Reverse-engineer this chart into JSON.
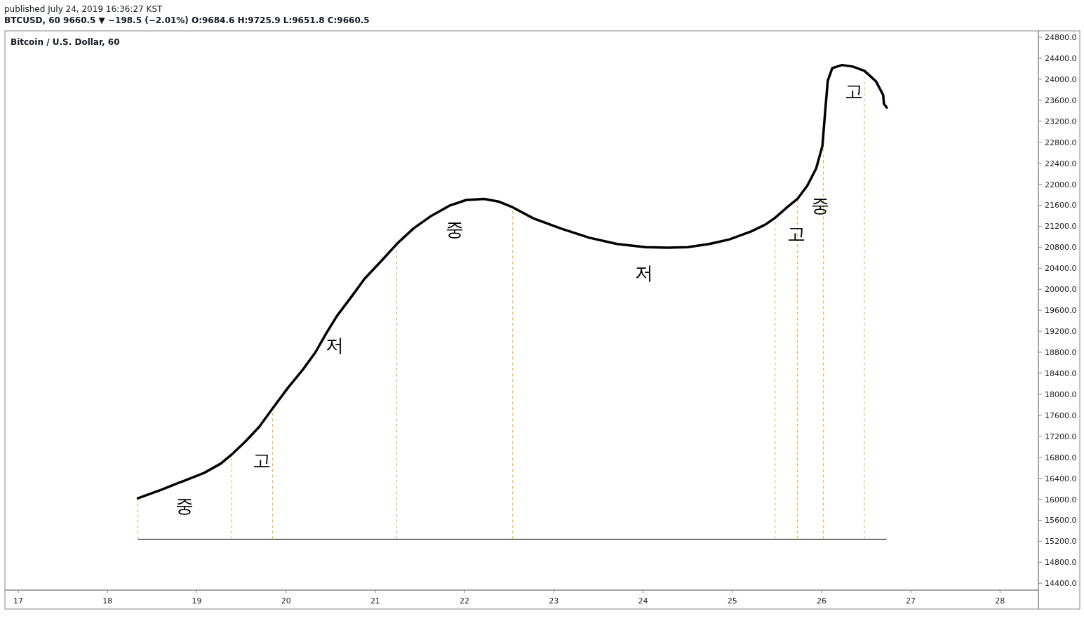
{
  "chart_data": {
    "type": "line",
    "title": "Bitcoin / U.S. Dollar, 60",
    "annotations": [
      "published July 24, 2019 16:36:27 KST",
      "BTCUSD, 60 9660.5 ▼ −198.5 (−2.01%) O:9684.6 H:9725.9 L:9651.8 C:9660.5",
      "중",
      "고",
      "저",
      "중",
      "저",
      "고",
      "중",
      "고"
    ],
    "x": [
      18.34,
      18.6,
      18.84,
      19.08,
      19.27,
      19.39,
      19.55,
      19.7,
      19.85,
      20.02,
      20.18,
      20.33,
      20.45,
      20.57,
      20.73,
      20.88,
      21.08,
      21.24,
      21.43,
      21.63,
      21.83,
      22.02,
      22.22,
      22.38,
      22.54,
      22.77,
      23.09,
      23.4,
      23.71,
      24.03,
      24.27,
      24.5,
      24.74,
      24.97,
      25.21,
      25.37,
      25.48,
      25.6,
      25.73,
      25.84,
      25.94,
      26.01,
      26.04,
      26.07,
      26.12,
      26.23,
      26.35,
      26.48,
      26.61,
      26.69,
      26.7,
      26.73
    ],
    "series": [
      {
        "color": "#000000",
        "values": [
          16020,
          16180,
          16340,
          16500,
          16680,
          16850,
          17110,
          17380,
          17730,
          18120,
          18450,
          18800,
          19160,
          19490,
          19850,
          20200,
          20560,
          20860,
          21160,
          21400,
          21590,
          21700,
          21720,
          21670,
          21560,
          21350,
          21150,
          20980,
          20860,
          20800,
          20790,
          20800,
          20860,
          20950,
          21100,
          21230,
          21360,
          21540,
          21720,
          21970,
          22300,
          22730,
          23370,
          23970,
          24210,
          24270,
          24240,
          24160,
          23960,
          23700,
          23530,
          23460
        ]
      },
      {
        "type": "line",
        "color": "#f5a623",
        "line_style": "dashed",
        "x": [
          18.34,
          18.34
        ],
        "values": [
          15240,
          16020
        ]
      }
    ],
    "ref_lines": [
      {
        "axis": "y",
        "value": 15240,
        "color": "#000000"
      },
      {
        "axis": "x",
        "value": 19.39,
        "color": "#f5a623",
        "line_style": "dashed"
      },
      {
        "axis": "x",
        "value": 19.85,
        "color": "#f5a623",
        "line_style": "dashed"
      },
      {
        "axis": "x",
        "value": 21.24,
        "color": "#f5a623",
        "line_style": "dashed"
      },
      {
        "axis": "x",
        "value": 22.54,
        "color": "#f5a623",
        "line_style": "dashed"
      },
      {
        "axis": "x",
        "value": 25.48,
        "color": "#f5a623",
        "line_style": "dashed"
      },
      {
        "axis": "x",
        "value": 25.73,
        "color": "#f5a623",
        "line_style": "dashed"
      },
      {
        "axis": "x",
        "value": 26.02,
        "color": "#f5a623",
        "line_style": "dashed"
      },
      {
        "axis": "x",
        "value": 26.48,
        "color": "#f5a623",
        "line_style": "dashed"
      }
    ],
    "xlim": [
      16.85,
      28.43
    ],
    "ylim": [
      14270,
      24920
    ],
    "xticks": [
      17,
      18,
      19,
      20,
      21,
      22,
      23,
      24,
      25,
      26,
      27,
      28
    ],
    "yticks": [
      {
        "value": 14400,
        "label": "14400.0"
      },
      {
        "value": 14800,
        "label": "14800.0"
      },
      {
        "value": 15200,
        "label": "15200.0"
      },
      {
        "value": 15600,
        "label": "15600.0"
      },
      {
        "value": 16000,
        "label": "16000.0"
      },
      {
        "value": 16400,
        "label": "16400.0"
      },
      {
        "value": 16800,
        "label": "16800.0"
      },
      {
        "value": 17200,
        "label": "17200.0"
      },
      {
        "value": 17600,
        "label": "17600.0"
      },
      {
        "value": 18000,
        "label": "18000.0"
      },
      {
        "value": 18400,
        "label": "18400.0"
      },
      {
        "value": 18800,
        "label": "18800.0"
      },
      {
        "value": 19200,
        "label": "19200.0"
      },
      {
        "value": 19600,
        "label": "19600.0"
      },
      {
        "value": 20000,
        "label": "20000.0"
      },
      {
        "value": 20400,
        "label": "20400.0"
      },
      {
        "value": 20800,
        "label": "20800.0"
      },
      {
        "value": 21200,
        "label": "21200.0"
      },
      {
        "value": 21600,
        "label": "21600.0"
      },
      {
        "value": 22000,
        "label": "22000.0"
      },
      {
        "value": 22400,
        "label": "22400.0"
      },
      {
        "value": 22800,
        "label": "22800.0"
      },
      {
        "value": 23200,
        "label": "23200.0"
      },
      {
        "value": 23600,
        "label": "23600.0"
      },
      {
        "value": 24000,
        "label": "24000.0"
      },
      {
        "value": 24400,
        "label": "24400.0"
      },
      {
        "value": 24800,
        "label": "24800.0"
      }
    ],
    "grid": false,
    "marker": "none",
    "line_style": "solid"
  }
}
